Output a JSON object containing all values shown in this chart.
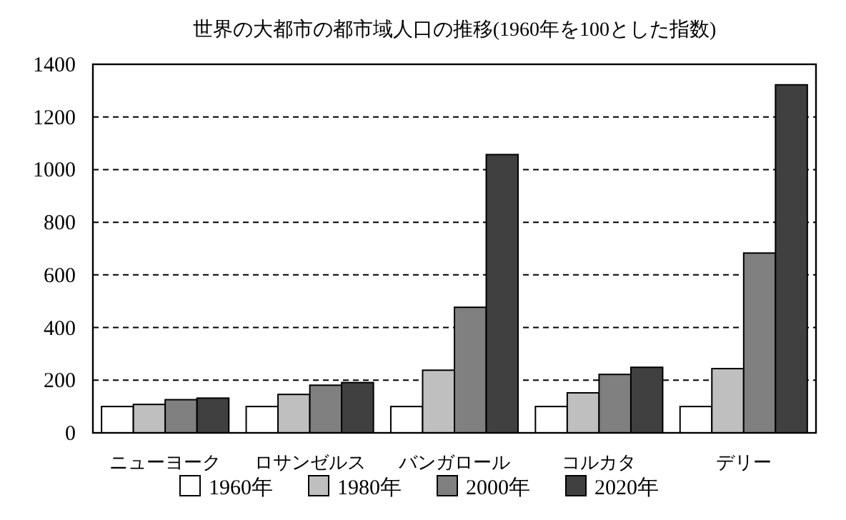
{
  "chart_data": {
    "type": "bar",
    "title": "世界の大都市の都市域人口の推移(1960年を100とした指数)",
    "categories": [
      "ニューヨーク",
      "ロサンゼルス",
      "バンガロール",
      "コルカタ",
      "デリー"
    ],
    "series": [
      {
        "name": "1960年",
        "color": "#ffffff",
        "values": [
          100,
          100,
          100,
          100,
          100
        ]
      },
      {
        "name": "1980年",
        "color": "#bfbfbf",
        "values": [
          108,
          146,
          238,
          152,
          244
        ]
      },
      {
        "name": "2000年",
        "color": "#808080",
        "values": [
          126,
          181,
          477,
          222,
          683
        ]
      },
      {
        "name": "2020年",
        "color": "#404040",
        "values": [
          132,
          191,
          1057,
          249,
          1322
        ]
      }
    ],
    "ylim": [
      0,
      1400
    ],
    "yticks": [
      0,
      200,
      400,
      600,
      800,
      1000,
      1200,
      1400
    ],
    "grid": "y",
    "legend": "bottom"
  }
}
